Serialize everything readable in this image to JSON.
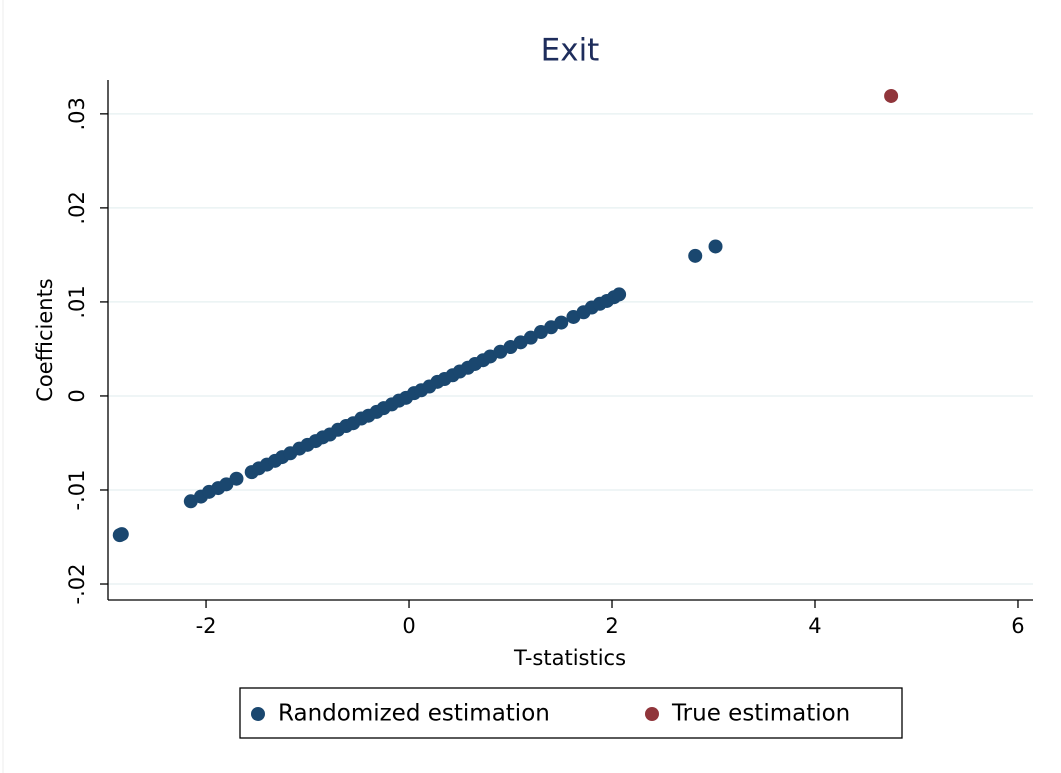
{
  "chart_data": {
    "type": "scatter",
    "title": "Exit",
    "x_label": "T-statistics",
    "y_label": "Coefficients",
    "xlim": [
      -2.966,
      6.148
    ],
    "xticks": [
      -2,
      0,
      2,
      4,
      6
    ],
    "ylim": [
      -0.0217,
      0.0336
    ],
    "yticks": [
      {
        "value": -0.02,
        "label": "-.02"
      },
      {
        "value": -0.01,
        "label": "-.01"
      },
      0,
      {
        "value": 0.01,
        "label": ".01"
      },
      {
        "value": 0.02,
        "label": ".02"
      },
      {
        "value": 0.03,
        "label": ".03"
      }
    ],
    "grid": true,
    "legend": "bottom",
    "series": [
      {
        "name": "Randomized estimation",
        "color": "#1a476f",
        "x": [
          -2.85,
          -2.83,
          -2.15,
          -2.05,
          -1.97,
          -1.88,
          -1.8,
          -1.7,
          -1.55,
          -1.48,
          -1.4,
          -1.32,
          -1.25,
          -1.17,
          -1.08,
          -1.0,
          -0.92,
          -0.85,
          -0.78,
          -0.7,
          -0.62,
          -0.55,
          -0.47,
          -0.4,
          -0.32,
          -0.25,
          -0.17,
          -0.1,
          -0.03,
          0.05,
          0.12,
          0.2,
          0.28,
          0.35,
          0.43,
          0.5,
          0.58,
          0.65,
          0.73,
          0.8,
          0.9,
          1.0,
          1.1,
          1.2,
          1.3,
          1.4,
          1.5,
          1.62,
          1.72,
          1.8,
          1.88,
          1.95,
          2.02,
          2.07,
          2.82,
          3.02
        ],
        "y": [
          -0.0148,
          -0.0147,
          -0.0112,
          -0.0107,
          -0.0102,
          -0.0098,
          -0.0094,
          -0.0088,
          -0.0081,
          -0.0077,
          -0.0073,
          -0.0069,
          -0.0065,
          -0.0061,
          -0.0056,
          -0.0052,
          -0.0048,
          -0.0044,
          -0.0041,
          -0.0036,
          -0.0032,
          -0.0029,
          -0.0024,
          -0.0021,
          -0.0017,
          -0.0013,
          -0.0009,
          -0.0005,
          -0.0002,
          0.0003,
          0.0006,
          0.001,
          0.0015,
          0.0018,
          0.0022,
          0.0026,
          0.003,
          0.0034,
          0.0038,
          0.0042,
          0.0047,
          0.0052,
          0.0057,
          0.0062,
          0.0068,
          0.0073,
          0.0078,
          0.0084,
          0.0089,
          0.0094,
          0.0098,
          0.0101,
          0.0105,
          0.0108,
          0.0149,
          0.0159
        ]
      },
      {
        "name": "True estimation",
        "color": "#90353b",
        "x": [
          4.75
        ],
        "y": [
          0.0319
        ]
      }
    ]
  }
}
